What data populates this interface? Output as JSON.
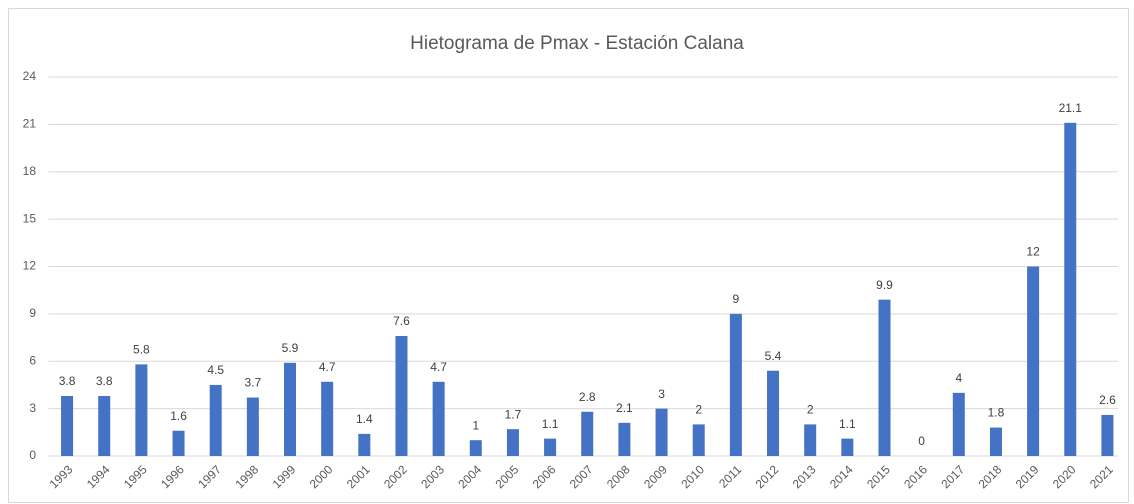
{
  "chart_data": {
    "type": "bar",
    "title": "Hietograma de Pmax - Estación Calana",
    "categories": [
      "1993",
      "1994",
      "1995",
      "1996",
      "1997",
      "1998",
      "1999",
      "2000",
      "2001",
      "2002",
      "2003",
      "2004",
      "2005",
      "2006",
      "2007",
      "2008",
      "2009",
      "2010",
      "2011",
      "2012",
      "2013",
      "2014",
      "2015",
      "2016",
      "2017",
      "2018",
      "2019",
      "2020",
      "2021"
    ],
    "values": [
      3.8,
      3.8,
      5.8,
      1.6,
      4.5,
      3.7,
      5.9,
      4.7,
      1.4,
      7.6,
      4.7,
      1,
      1.7,
      1.1,
      2.8,
      2.1,
      3,
      2,
      9,
      5.4,
      2,
      1.1,
      9.9,
      0,
      4,
      1.8,
      12,
      21.1,
      2.6
    ],
    "color": "#4472c4",
    "ylim": [
      0,
      24
    ],
    "yticks": [
      0,
      3,
      6,
      9,
      12,
      15,
      18,
      21,
      24
    ],
    "grid": true
  }
}
